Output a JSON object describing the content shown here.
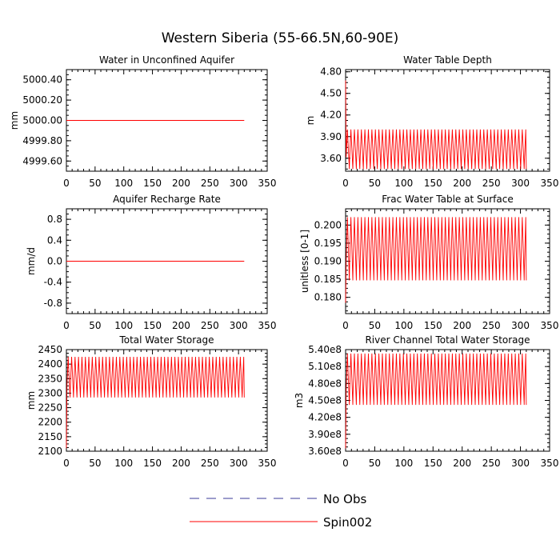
{
  "figure": {
    "title": "Western Siberia (55-66.5N,60-90E)"
  },
  "legend": {
    "items": [
      {
        "label": "No Obs",
        "style": "dashed",
        "color": "#3a3a9a"
      },
      {
        "label": "Spin002",
        "style": "solid",
        "color": "#ff0000"
      }
    ]
  },
  "chart_data": [
    {
      "type": "line",
      "title": "Water in Unconfined Aquifer",
      "ylabel": "mm",
      "xlim": [
        0,
        350
      ],
      "ylim": [
        4999.5,
        5000.5
      ],
      "xticks": [
        0,
        50,
        100,
        150,
        200,
        250,
        300,
        350
      ],
      "yticks": [
        4999.6,
        4999.8,
        5000.0,
        5000.2,
        5000.4
      ],
      "ytick_labels": [
        "4999.60",
        "4999.80",
        "5000.00",
        "5000.20",
        "5000.40"
      ],
      "series": [
        {
          "color": "#ff0000",
          "x_range": [
            0,
            310
          ],
          "constant": 5000.0
        }
      ]
    },
    {
      "type": "line",
      "title": "Water Table Depth",
      "ylabel": "m",
      "xlim": [
        0,
        350
      ],
      "ylim": [
        3.42,
        4.83
      ],
      "xticks": [
        0,
        50,
        100,
        150,
        200,
        250,
        300,
        350
      ],
      "yticks": [
        3.6,
        3.9,
        4.2,
        4.5,
        4.8
      ],
      "ytick_labels": [
        "3.60",
        "3.90",
        "4.20",
        "4.50",
        "4.80"
      ],
      "series": [
        {
          "color": "#ff0000",
          "x_range": [
            0,
            310
          ],
          "start": 4.68,
          "period": 6,
          "high": 4.0,
          "low": 3.45
        }
      ]
    },
    {
      "type": "line",
      "title": "Aquifer Recharge Rate",
      "ylabel": "mm/d",
      "xlim": [
        0,
        350
      ],
      "ylim": [
        -1.0,
        1.0
      ],
      "xticks": [
        0,
        50,
        100,
        150,
        200,
        250,
        300,
        350
      ],
      "yticks": [
        -0.8,
        -0.4,
        0.0,
        0.4,
        0.8
      ],
      "ytick_labels": [
        "-0.8",
        "-0.4",
        "0.0",
        "0.4",
        "0.8"
      ],
      "series": [
        {
          "color": "#ff0000",
          "x_range": [
            0,
            310
          ],
          "constant": 0.0
        }
      ]
    },
    {
      "type": "line",
      "title": "Frac Water Table at Surface",
      "ylabel": "unitless [0-1]",
      "xlim": [
        0,
        350
      ],
      "ylim": [
        0.1755,
        0.2045
      ],
      "xticks": [
        0,
        50,
        100,
        150,
        200,
        250,
        300,
        350
      ],
      "yticks": [
        0.18,
        0.185,
        0.19,
        0.195,
        0.2
      ],
      "ytick_labels": [
        "0.180",
        "0.185",
        "0.190",
        "0.195",
        "0.200"
      ],
      "series": [
        {
          "color": "#ff0000",
          "x_range": [
            0,
            310
          ],
          "start": 0.1785,
          "period": 6,
          "high": 0.2022,
          "low": 0.1847
        }
      ]
    },
    {
      "type": "line",
      "title": "Total Water Storage",
      "ylabel": "mm",
      "xlim": [
        0,
        350
      ],
      "ylim": [
        2100,
        2450
      ],
      "xticks": [
        0,
        50,
        100,
        150,
        200,
        250,
        300,
        350
      ],
      "yticks": [
        2100,
        2150,
        2200,
        2250,
        2300,
        2350,
        2400,
        2450
      ],
      "ytick_labels": [
        "2100",
        "2150",
        "2200",
        "2250",
        "2300",
        "2350",
        "2400",
        "2450"
      ],
      "series": [
        {
          "color": "#ff0000",
          "x_range": [
            0,
            310
          ],
          "start": 2110,
          "period": 6,
          "high": 2425,
          "low": 2285
        }
      ]
    },
    {
      "type": "line",
      "title": "River Channel Total Water Storage",
      "ylabel": "m3",
      "xlim": [
        0,
        350
      ],
      "ylim": [
        360000000.0,
        540000000.0
      ],
      "xticks": [
        0,
        50,
        100,
        150,
        200,
        250,
        300,
        350
      ],
      "yticks": [
        360000000.0,
        390000000.0,
        420000000.0,
        450000000.0,
        480000000.0,
        510000000.0,
        540000000.0
      ],
      "ytick_labels": [
        "3.60e8",
        "3.90e8",
        "4.20e8",
        "4.50e8",
        "4.80e8",
        "5.10e8",
        "5.40e8"
      ],
      "series": [
        {
          "color": "#ff0000",
          "x_range": [
            0,
            310
          ],
          "start": 365000000.0,
          "period": 6,
          "high": 533000000.0,
          "low": 442000000.0
        }
      ]
    }
  ]
}
